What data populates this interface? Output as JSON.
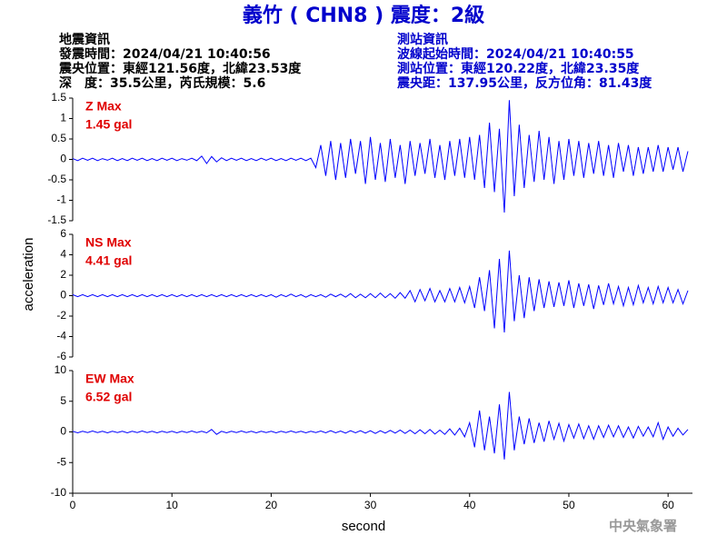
{
  "header": {
    "title": "義竹 ( CHN8 ) 震度：2級",
    "left": [
      "地震資訊",
      "發震時間：2024/04/21 10:40:56",
      "震央位置：東經121.56度，北緯23.53度",
      "深　度：35.5公里，芮氏規模：5.6"
    ],
    "right": [
      "測站資訊",
      "波線起始時間：2024/04/21 10:40:55",
      "測站位置：東經120.22度，北緯23.35度",
      "震央距：137.95公里，反方位角：81.43度"
    ]
  },
  "footer": "中央氣象署",
  "chart_data": {
    "type": "line",
    "xlabel": "second",
    "ylabel": "acceleration",
    "xlim": [
      0,
      62
    ],
    "xticks": [
      0,
      10,
      20,
      30,
      40,
      50,
      60
    ],
    "x": [
      0,
      0.5,
      1,
      1.5,
      2,
      2.5,
      3,
      3.5,
      4,
      4.5,
      5,
      5.5,
      6,
      6.5,
      7,
      7.5,
      8,
      8.5,
      9,
      9.5,
      10,
      10.5,
      11,
      11.5,
      12,
      12.5,
      13,
      13.5,
      14,
      14.5,
      15,
      15.5,
      16,
      16.5,
      17,
      17.5,
      18,
      18.5,
      19,
      19.5,
      20,
      20.5,
      21,
      21.5,
      22,
      22.5,
      23,
      23.5,
      24,
      24.5,
      25,
      25.5,
      26,
      26.5,
      27,
      27.5,
      28,
      28.5,
      29,
      29.5,
      30,
      30.5,
      31,
      31.5,
      32,
      32.5,
      33,
      33.5,
      34,
      34.5,
      35,
      35.5,
      36,
      36.5,
      37,
      37.5,
      38,
      38.5,
      39,
      39.5,
      40,
      40.5,
      41,
      41.5,
      42,
      42.5,
      43,
      43.5,
      44,
      44.5,
      45,
      45.5,
      46,
      46.5,
      47,
      47.5,
      48,
      48.5,
      49,
      49.5,
      50,
      50.5,
      51,
      51.5,
      52,
      52.5,
      53,
      53.5,
      54,
      54.5,
      55,
      55.5,
      56,
      56.5,
      57,
      57.5,
      58,
      58.5,
      59,
      59.5,
      60,
      60.5,
      61,
      61.5,
      62
    ],
    "panels": [
      {
        "label": "Z Max",
        "max_label": "1.45 gal",
        "label_color": "#e00000",
        "color": "#0000ff",
        "ylim": [
          -1.5,
          1.5
        ],
        "yticks": [
          -1.5,
          -1,
          -0.5,
          0,
          0.5,
          1,
          1.5
        ],
        "values": [
          0.02,
          -0.03,
          0.03,
          -0.02,
          0.03,
          -0.03,
          0.02,
          -0.02,
          0.03,
          -0.03,
          0.02,
          -0.03,
          0.03,
          -0.02,
          0.03,
          -0.03,
          0.02,
          -0.03,
          0.03,
          -0.02,
          0.03,
          -0.03,
          0.02,
          -0.02,
          0.03,
          -0.03,
          0.08,
          -0.1,
          0.07,
          -0.06,
          0.04,
          -0.03,
          0.03,
          -0.02,
          0.03,
          -0.03,
          0.02,
          -0.03,
          0.03,
          -0.02,
          0.03,
          -0.03,
          0.02,
          -0.03,
          0.03,
          -0.02,
          0.03,
          -0.03,
          0.03,
          -0.2,
          0.35,
          -0.4,
          0.45,
          -0.5,
          0.4,
          -0.45,
          0.5,
          -0.35,
          0.45,
          -0.6,
          0.55,
          -0.5,
          0.4,
          -0.55,
          0.5,
          -0.45,
          0.35,
          -0.6,
          0.45,
          -0.4,
          0.4,
          -0.35,
          0.5,
          -0.45,
          0.35,
          -0.5,
          0.45,
          -0.4,
          0.5,
          -0.45,
          0.55,
          -0.5,
          0.6,
          -0.7,
          0.9,
          -0.8,
          0.75,
          -1.3,
          1.45,
          -0.9,
          0.85,
          -0.7,
          0.6,
          -0.55,
          0.7,
          -0.5,
          0.55,
          -0.6,
          0.45,
          -0.5,
          0.5,
          -0.4,
          0.45,
          -0.45,
          0.4,
          -0.35,
          0.45,
          -0.4,
          0.35,
          -0.45,
          0.4,
          -0.3,
          0.35,
          -0.4,
          0.3,
          -0.35,
          0.3,
          -0.3,
          0.35,
          -0.3,
          0.3,
          -0.25,
          0.3,
          -0.3,
          0.2
        ]
      },
      {
        "label": "NS Max",
        "max_label": "4.41 gal",
        "label_color": "#e00000",
        "color": "#0000ff",
        "ylim": [
          -6,
          6
        ],
        "yticks": [
          -6,
          -4,
          -2,
          0,
          2,
          4,
          6
        ],
        "values": [
          0.1,
          -0.1,
          0.1,
          -0.1,
          0.1,
          -0.1,
          0.1,
          -0.1,
          0.1,
          -0.1,
          0.1,
          -0.1,
          0.1,
          -0.1,
          0.1,
          -0.1,
          0.1,
          -0.1,
          0.1,
          -0.1,
          0.1,
          -0.1,
          0.1,
          -0.1,
          0.1,
          -0.1,
          0.1,
          -0.1,
          0.1,
          -0.1,
          0.1,
          -0.1,
          0.1,
          -0.1,
          0.1,
          -0.1,
          0.1,
          -0.1,
          0.1,
          -0.1,
          0.1,
          -0.15,
          0.1,
          -0.1,
          0.15,
          -0.1,
          0.1,
          -0.15,
          0.1,
          -0.1,
          0.1,
          -0.15,
          0.15,
          -0.1,
          0.15,
          -0.15,
          0.2,
          -0.2,
          0.15,
          -0.2,
          0.2,
          -0.2,
          0.25,
          -0.2,
          0.2,
          -0.25,
          0.3,
          -0.25,
          0.5,
          -0.6,
          0.6,
          -0.5,
          0.7,
          -0.6,
          0.5,
          -0.6,
          0.7,
          -0.6,
          0.8,
          -0.7,
          0.9,
          -1.2,
          1.8,
          -1.5,
          2.5,
          -3.2,
          3.6,
          -3.6,
          4.41,
          -2.5,
          2.0,
          -2.2,
          1.8,
          -1.5,
          1.6,
          -1.2,
          1.4,
          -1.1,
          1.3,
          -1.0,
          1.5,
          -1.2,
          1.2,
          -1.0,
          1.1,
          -1.3,
          1.0,
          -0.9,
          1.2,
          -0.8,
          0.9,
          -1.0,
          0.8,
          -0.9,
          1.0,
          -0.7,
          0.8,
          -0.8,
          0.9,
          -0.7,
          0.8,
          -0.7,
          0.6,
          -0.8,
          0.5
        ]
      },
      {
        "label": "EW Max",
        "max_label": "6.52 gal",
        "label_color": "#e00000",
        "color": "#0000ff",
        "ylim": [
          -10,
          10
        ],
        "yticks": [
          -10,
          -5,
          0,
          5,
          10
        ],
        "values": [
          0.1,
          -0.15,
          0.1,
          -0.1,
          0.15,
          -0.1,
          0.1,
          -0.15,
          0.1,
          -0.1,
          0.1,
          -0.15,
          0.1,
          -0.1,
          0.15,
          -0.1,
          0.1,
          -0.15,
          0.1,
          -0.1,
          0.1,
          -0.15,
          0.1,
          -0.1,
          0.15,
          -0.1,
          0.1,
          -0.15,
          0.4,
          -0.4,
          0.1,
          -0.15,
          0.1,
          -0.1,
          0.15,
          -0.1,
          0.1,
          -0.15,
          0.1,
          -0.1,
          0.1,
          -0.15,
          0.1,
          -0.1,
          0.15,
          -0.1,
          0.1,
          -0.15,
          0.1,
          -0.1,
          0.15,
          -0.15,
          0.2,
          -0.15,
          0.15,
          -0.2,
          0.2,
          -0.15,
          0.2,
          -0.2,
          0.2,
          -0.25,
          0.2,
          -0.2,
          0.25,
          -0.2,
          0.3,
          -0.25,
          0.3,
          -0.3,
          0.35,
          -0.3,
          0.4,
          -0.35,
          0.3,
          -0.4,
          0.5,
          -0.5,
          0.6,
          -0.8,
          1.5,
          -2.5,
          3.5,
          -3.0,
          2.5,
          -3.5,
          4.5,
          -4.5,
          6.52,
          -3.0,
          2.5,
          -2.0,
          2.2,
          -1.8,
          1.5,
          -1.6,
          1.8,
          -1.2,
          1.4,
          -1.5,
          1.2,
          -1.0,
          1.3,
          -1.1,
          1.0,
          -1.2,
          1.0,
          -0.9,
          1.1,
          -0.8,
          1.0,
          -0.9,
          0.8,
          -1.0,
          0.9,
          -0.7,
          0.8,
          -0.8,
          1.5,
          -1.2,
          0.8,
          -0.7,
          0.6,
          -0.5,
          0.4
        ]
      }
    ]
  }
}
